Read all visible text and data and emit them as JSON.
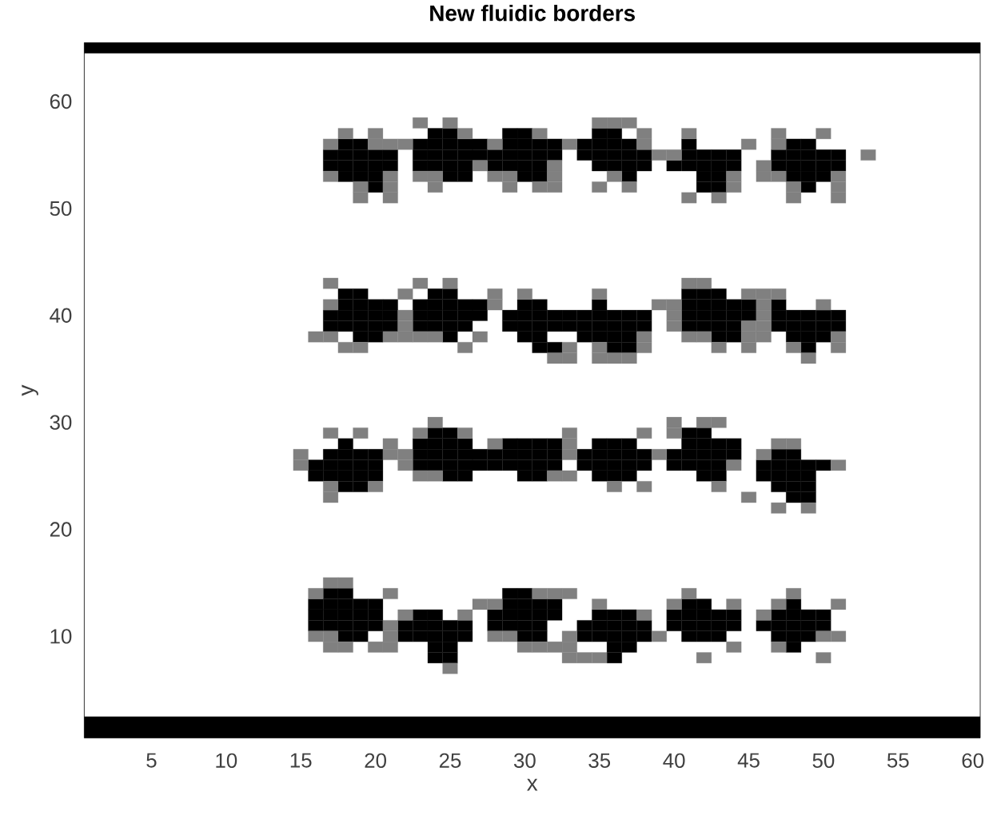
{
  "chart_data": {
    "type": "scatter",
    "title": "New fluidic borders",
    "xlabel": "x",
    "ylabel": "y",
    "xlim": [
      0.5,
      60.5
    ],
    "ylim": [
      0.5,
      65.5
    ],
    "xticks": [
      5,
      10,
      15,
      20,
      25,
      30,
      35,
      40,
      45,
      50,
      55,
      60
    ],
    "yticks": [
      10,
      20,
      30,
      40,
      50,
      60
    ],
    "marker": "square",
    "bands": [
      {
        "axis": "y",
        "from": 0.5,
        "to": 2.5,
        "color": "#000000"
      },
      {
        "axis": "y",
        "from": 64.5,
        "to": 65.5,
        "color": "#000000"
      }
    ],
    "series": [
      {
        "color": "#000000",
        "x": [
          24,
          25,
          29,
          30,
          35,
          36
        ],
        "values": [
          57,
          57,
          57,
          57,
          57,
          57
        ]
      },
      {
        "color": "#000000",
        "x": [
          18,
          19,
          23,
          24,
          25,
          26,
          27,
          29,
          30,
          31,
          32,
          34,
          35,
          36,
          37,
          41,
          48,
          49
        ],
        "values": [
          56,
          56,
          56,
          56,
          56,
          56,
          56,
          56,
          56,
          56,
          56,
          56,
          56,
          56,
          56,
          56,
          56,
          56
        ]
      },
      {
        "color": "#000000",
        "x": [
          17,
          18,
          19,
          20,
          21,
          23,
          24,
          25,
          26,
          27,
          28,
          29,
          30,
          31,
          32,
          34,
          35,
          36,
          37,
          38,
          41,
          42,
          43,
          44,
          47,
          48,
          49,
          50,
          51
        ],
        "values": [
          55,
          55,
          55,
          55,
          55,
          55,
          55,
          55,
          55,
          55,
          55,
          55,
          55,
          55,
          55,
          55,
          55,
          55,
          55,
          55,
          55,
          55,
          55,
          55,
          55,
          55,
          55,
          55,
          55
        ]
      },
      {
        "color": "#000000",
        "x": [
          17,
          18,
          19,
          20,
          21,
          23,
          24,
          25,
          26,
          28,
          29,
          30,
          31,
          35,
          36,
          37,
          38,
          40,
          41,
          42,
          43,
          44,
          47,
          48,
          49,
          50,
          51
        ],
        "values": [
          54,
          54,
          54,
          54,
          54,
          54,
          54,
          54,
          54,
          54,
          54,
          54,
          54,
          54,
          54,
          54,
          54,
          54,
          54,
          54,
          54,
          54,
          54,
          54,
          54,
          54,
          54
        ]
      },
      {
        "color": "#000000",
        "x": [
          18,
          19,
          20,
          25,
          26,
          30,
          31,
          37,
          42,
          43,
          48,
          49,
          50
        ],
        "values": [
          53,
          53,
          53,
          53,
          53,
          53,
          53,
          53,
          53,
          53,
          53,
          53,
          53
        ]
      },
      {
        "color": "#000000",
        "x": [
          20,
          42,
          43,
          49
        ],
        "values": [
          52,
          52,
          52,
          52
        ]
      },
      {
        "color": "#000000",
        "x": [
          18,
          19,
          24,
          25,
          41,
          42,
          43
        ],
        "values": [
          42,
          42,
          42,
          42,
          42,
          42,
          42
        ]
      },
      {
        "color": "#000000",
        "x": [
          18,
          19,
          20,
          21,
          23,
          24,
          25,
          26,
          27,
          30,
          31,
          35,
          41,
          42,
          43,
          44,
          45,
          47
        ],
        "values": [
          41,
          41,
          41,
          41,
          41,
          41,
          41,
          41,
          41,
          41,
          41,
          41,
          41,
          41,
          41,
          41,
          41,
          41
        ]
      },
      {
        "color": "#000000",
        "x": [
          17,
          18,
          19,
          20,
          21,
          23,
          24,
          25,
          26,
          27,
          29,
          30,
          31,
          32,
          33,
          34,
          35,
          36,
          37,
          38,
          41,
          42,
          43,
          44,
          45,
          47,
          48,
          49,
          50,
          51
        ],
        "values": [
          40,
          40,
          40,
          40,
          40,
          40,
          40,
          40,
          40,
          40,
          40,
          40,
          40,
          40,
          40,
          40,
          40,
          40,
          40,
          40,
          40,
          40,
          40,
          40,
          40,
          40,
          40,
          40,
          40,
          40
        ]
      },
      {
        "color": "#000000",
        "x": [
          17,
          18,
          19,
          20,
          21,
          23,
          24,
          25,
          26,
          29,
          30,
          31,
          32,
          33,
          34,
          35,
          36,
          37,
          38,
          41,
          42,
          43,
          44,
          47,
          48,
          49,
          50,
          51
        ],
        "values": [
          39,
          39,
          39,
          39,
          39,
          39,
          39,
          39,
          39,
          39,
          39,
          39,
          39,
          39,
          39,
          39,
          39,
          39,
          39,
          39,
          39,
          39,
          39,
          39,
          39,
          39,
          39,
          39
        ]
      },
      {
        "color": "#000000",
        "x": [
          19,
          20,
          25,
          30,
          31,
          34,
          35,
          36,
          37,
          43,
          44,
          48,
          49,
          50
        ],
        "values": [
          38,
          38,
          38,
          38,
          38,
          38,
          38,
          38,
          38,
          38,
          38,
          38,
          38,
          38
        ]
      },
      {
        "color": "#000000",
        "x": [
          31,
          32,
          36,
          37,
          49
        ],
        "values": [
          37,
          37,
          37,
          37,
          37
        ]
      },
      {
        "color": "#000000",
        "x": [
          24,
          25,
          41,
          42
        ],
        "values": [
          29,
          29,
          29,
          29
        ]
      },
      {
        "color": "#000000",
        "x": [
          18,
          23,
          24,
          25,
          26,
          29,
          30,
          31,
          32,
          35,
          36,
          37,
          41,
          42,
          43,
          44
        ],
        "values": [
          28,
          28,
          28,
          28,
          28,
          28,
          28,
          28,
          28,
          28,
          28,
          28,
          28,
          28,
          28,
          28
        ]
      },
      {
        "color": "#000000",
        "x": [
          17,
          18,
          19,
          20,
          23,
          24,
          25,
          26,
          27,
          28,
          29,
          30,
          31,
          32,
          34,
          35,
          36,
          37,
          38,
          40,
          41,
          42,
          43,
          44,
          47,
          48
        ],
        "values": [
          27,
          27,
          27,
          27,
          27,
          27,
          27,
          27,
          27,
          27,
          27,
          27,
          27,
          27,
          27,
          27,
          27,
          27,
          27,
          27,
          27,
          27,
          27,
          27,
          27,
          27
        ]
      },
      {
        "color": "#000000",
        "x": [
          16,
          17,
          18,
          19,
          20,
          23,
          24,
          25,
          26,
          27,
          28,
          29,
          30,
          31,
          32,
          34,
          35,
          36,
          37,
          38,
          40,
          41,
          42,
          43,
          46,
          47,
          48,
          49,
          50
        ],
        "values": [
          26,
          26,
          26,
          26,
          26,
          26,
          26,
          26,
          26,
          26,
          26,
          26,
          26,
          26,
          26,
          26,
          26,
          26,
          26,
          26,
          26,
          26,
          26,
          26,
          26,
          26,
          26,
          26,
          26
        ]
      },
      {
        "color": "#000000",
        "x": [
          16,
          17,
          18,
          19,
          20,
          25,
          26,
          30,
          31,
          35,
          36,
          37,
          42,
          43,
          46,
          47,
          48,
          49
        ],
        "values": [
          25,
          25,
          25,
          25,
          25,
          25,
          25,
          25,
          25,
          25,
          25,
          25,
          25,
          25,
          25,
          25,
          25,
          25
        ]
      },
      {
        "color": "#000000",
        "x": [
          18,
          19,
          47,
          48,
          49
        ],
        "values": [
          24,
          24,
          24,
          24,
          24
        ]
      },
      {
        "color": "#000000",
        "x": [
          48,
          49
        ],
        "values": [
          23,
          23
        ]
      },
      {
        "color": "#000000",
        "x": [
          17,
          18,
          29,
          30
        ],
        "values": [
          14,
          14,
          14,
          14
        ]
      },
      {
        "color": "#000000",
        "x": [
          16,
          17,
          18,
          19,
          20,
          29,
          30,
          31,
          32,
          41,
          42,
          48
        ],
        "values": [
          13,
          13,
          13,
          13,
          13,
          13,
          13,
          13,
          13,
          13,
          13,
          13
        ]
      },
      {
        "color": "#000000",
        "x": [
          16,
          17,
          18,
          19,
          20,
          23,
          24,
          28,
          29,
          30,
          31,
          32,
          35,
          36,
          37,
          40,
          41,
          42,
          43,
          44,
          47,
          48,
          49,
          50
        ],
        "values": [
          12,
          12,
          12,
          12,
          12,
          12,
          12,
          12,
          12,
          12,
          12,
          12,
          12,
          12,
          12,
          12,
          12,
          12,
          12,
          12,
          12,
          12,
          12,
          12
        ]
      },
      {
        "color": "#000000",
        "x": [
          16,
          17,
          18,
          19,
          20,
          22,
          23,
          24,
          25,
          26,
          28,
          29,
          30,
          31,
          34,
          35,
          36,
          37,
          38,
          40,
          41,
          42,
          43,
          44,
          46,
          47,
          48,
          49,
          50
        ],
        "values": [
          11,
          11,
          11,
          11,
          11,
          11,
          11,
          11,
          11,
          11,
          11,
          11,
          11,
          11,
          11,
          11,
          11,
          11,
          11,
          11,
          11,
          11,
          11,
          11,
          11,
          11,
          11,
          11,
          11
        ]
      },
      {
        "color": "#000000",
        "x": [
          18,
          19,
          22,
          23,
          24,
          25,
          26,
          30,
          31,
          34,
          35,
          36,
          37,
          38,
          41,
          42,
          43,
          47,
          48,
          49
        ],
        "values": [
          10,
          10,
          10,
          10,
          10,
          10,
          10,
          10,
          10,
          10,
          10,
          10,
          10,
          10,
          10,
          10,
          10,
          10,
          10,
          10
        ]
      },
      {
        "color": "#000000",
        "x": [
          24,
          25,
          36,
          37,
          48
        ],
        "values": [
          9,
          9,
          9,
          9,
          9
        ]
      },
      {
        "color": "#000000",
        "x": [
          24,
          25,
          36
        ],
        "values": [
          8,
          8,
          8
        ]
      },
      {
        "color": "#808080",
        "x": [
          23,
          25,
          35,
          36,
          37
        ],
        "values": [
          58,
          58,
          58,
          58,
          58
        ]
      },
      {
        "color": "#808080",
        "x": [
          18,
          20,
          26,
          31,
          38,
          41,
          47,
          50
        ],
        "values": [
          57,
          57,
          57,
          57,
          57,
          57,
          57,
          57
        ]
      },
      {
        "color": "#808080",
        "x": [
          17,
          20,
          21,
          22,
          28,
          33,
          38,
          45,
          47
        ],
        "values": [
          56,
          56,
          56,
          56,
          56,
          56,
          56,
          56,
          56
        ]
      },
      {
        "color": "#808080",
        "x": [
          39,
          40,
          53
        ],
        "values": [
          55,
          55,
          55
        ]
      },
      {
        "color": "#808080",
        "x": [
          27,
          32,
          46
        ],
        "values": [
          54,
          54,
          54
        ]
      },
      {
        "color": "#808080",
        "x": [
          17,
          21,
          23,
          24,
          28,
          29,
          32,
          36,
          44,
          46,
          47,
          51
        ],
        "values": [
          53,
          53,
          53,
          53,
          53,
          53,
          53,
          53,
          53,
          53,
          53,
          53
        ]
      },
      {
        "color": "#808080",
        "x": [
          19,
          21,
          24,
          29,
          31,
          32,
          35,
          37,
          44,
          48,
          51
        ],
        "values": [
          52,
          52,
          52,
          52,
          52,
          52,
          52,
          52,
          52,
          52,
          52
        ]
      },
      {
        "color": "#808080",
        "x": [
          19,
          21,
          41,
          43,
          48,
          51
        ],
        "values": [
          51,
          51,
          51,
          51,
          51,
          51
        ]
      },
      {
        "color": "#808080",
        "x": [
          17,
          23,
          25,
          41,
          42
        ],
        "values": [
          43,
          43,
          43,
          43,
          43
        ]
      },
      {
        "color": "#808080",
        "x": [
          22,
          28,
          30,
          35,
          45,
          46,
          47
        ],
        "values": [
          42,
          42,
          42,
          42,
          42,
          42,
          42
        ]
      },
      {
        "color": "#808080",
        "x": [
          17,
          28,
          39,
          40,
          46,
          50
        ],
        "values": [
          41,
          41,
          41,
          41,
          41,
          41
        ]
      },
      {
        "color": "#808080",
        "x": [
          22,
          40,
          46
        ],
        "values": [
          40,
          40,
          40
        ]
      },
      {
        "color": "#808080",
        "x": [
          22,
          40,
          45,
          46
        ],
        "values": [
          39,
          39,
          39,
          39
        ]
      },
      {
        "color": "#808080",
        "x": [
          16,
          17,
          21,
          22,
          23,
          24,
          27,
          38,
          41,
          42,
          45,
          46,
          51
        ],
        "values": [
          38,
          38,
          38,
          38,
          38,
          38,
          38,
          38,
          38,
          38,
          38,
          38,
          38
        ]
      },
      {
        "color": "#808080",
        "x": [
          18,
          19,
          26,
          33,
          35,
          38,
          43,
          45,
          48,
          51
        ],
        "values": [
          37,
          37,
          37,
          37,
          37,
          37,
          37,
          37,
          37,
          37
        ]
      },
      {
        "color": "#808080",
        "x": [
          32,
          33,
          35,
          36,
          37,
          49
        ],
        "values": [
          36,
          36,
          36,
          36,
          36,
          36
        ]
      },
      {
        "color": "#808080",
        "x": [
          24,
          40,
          42,
          43
        ],
        "values": [
          30,
          30,
          30,
          30
        ]
      },
      {
        "color": "#808080",
        "x": [
          17,
          19,
          23,
          26,
          33,
          38,
          40
        ],
        "values": [
          29,
          29,
          29,
          29,
          29,
          29,
          29
        ]
      },
      {
        "color": "#808080",
        "x": [
          21,
          28,
          33,
          47,
          48
        ],
        "values": [
          28,
          28,
          28,
          28,
          28
        ]
      },
      {
        "color": "#808080",
        "x": [
          15,
          21,
          22,
          33,
          39,
          46
        ],
        "values": [
          27,
          27,
          27,
          27,
          27,
          27
        ]
      },
      {
        "color": "#808080",
        "x": [
          15,
          22,
          44,
          51
        ],
        "values": [
          26,
          26,
          26,
          26
        ]
      },
      {
        "color": "#808080",
        "x": [
          23,
          24,
          32,
          33
        ],
        "values": [
          25,
          25,
          25,
          25
        ]
      },
      {
        "color": "#808080",
        "x": [
          17,
          20,
          36,
          38,
          43
        ],
        "values": [
          24,
          24,
          24,
          24,
          24
        ]
      },
      {
        "color": "#808080",
        "x": [
          17,
          45
        ],
        "values": [
          23,
          23
        ]
      },
      {
        "color": "#808080",
        "x": [
          47,
          49
        ],
        "values": [
          22,
          22
        ]
      },
      {
        "color": "#808080",
        "x": [
          17,
          18
        ],
        "values": [
          15,
          15
        ]
      },
      {
        "color": "#808080",
        "x": [
          16,
          21,
          31,
          32,
          33,
          41,
          48
        ],
        "values": [
          14,
          14,
          14,
          14,
          14,
          14,
          14
        ]
      },
      {
        "color": "#808080",
        "x": [
          27,
          28,
          35,
          40,
          44,
          47,
          51
        ],
        "values": [
          13,
          13,
          13,
          13,
          13,
          13,
          13
        ]
      },
      {
        "color": "#808080",
        "x": [
          22,
          26,
          38,
          46
        ],
        "values": [
          12,
          12,
          12,
          12
        ]
      },
      {
        "color": "#808080",
        "x": [
          21
        ],
        "values": [
          11
        ]
      },
      {
        "color": "#808080",
        "x": [
          16,
          17,
          21,
          28,
          29,
          33,
          39,
          50,
          51
        ],
        "values": [
          10,
          10,
          10,
          10,
          10,
          10,
          10,
          10,
          10
        ]
      },
      {
        "color": "#808080",
        "x": [
          17,
          18,
          20,
          21,
          30,
          31,
          32,
          33,
          44,
          47
        ],
        "values": [
          9,
          9,
          9,
          9,
          9,
          9,
          9,
          9,
          9,
          9
        ]
      },
      {
        "color": "#808080",
        "x": [
          33,
          34,
          35,
          42,
          50
        ],
        "values": [
          8,
          8,
          8,
          8,
          8
        ]
      },
      {
        "color": "#808080",
        "x": [
          25
        ],
        "values": [
          7
        ]
      }
    ]
  }
}
